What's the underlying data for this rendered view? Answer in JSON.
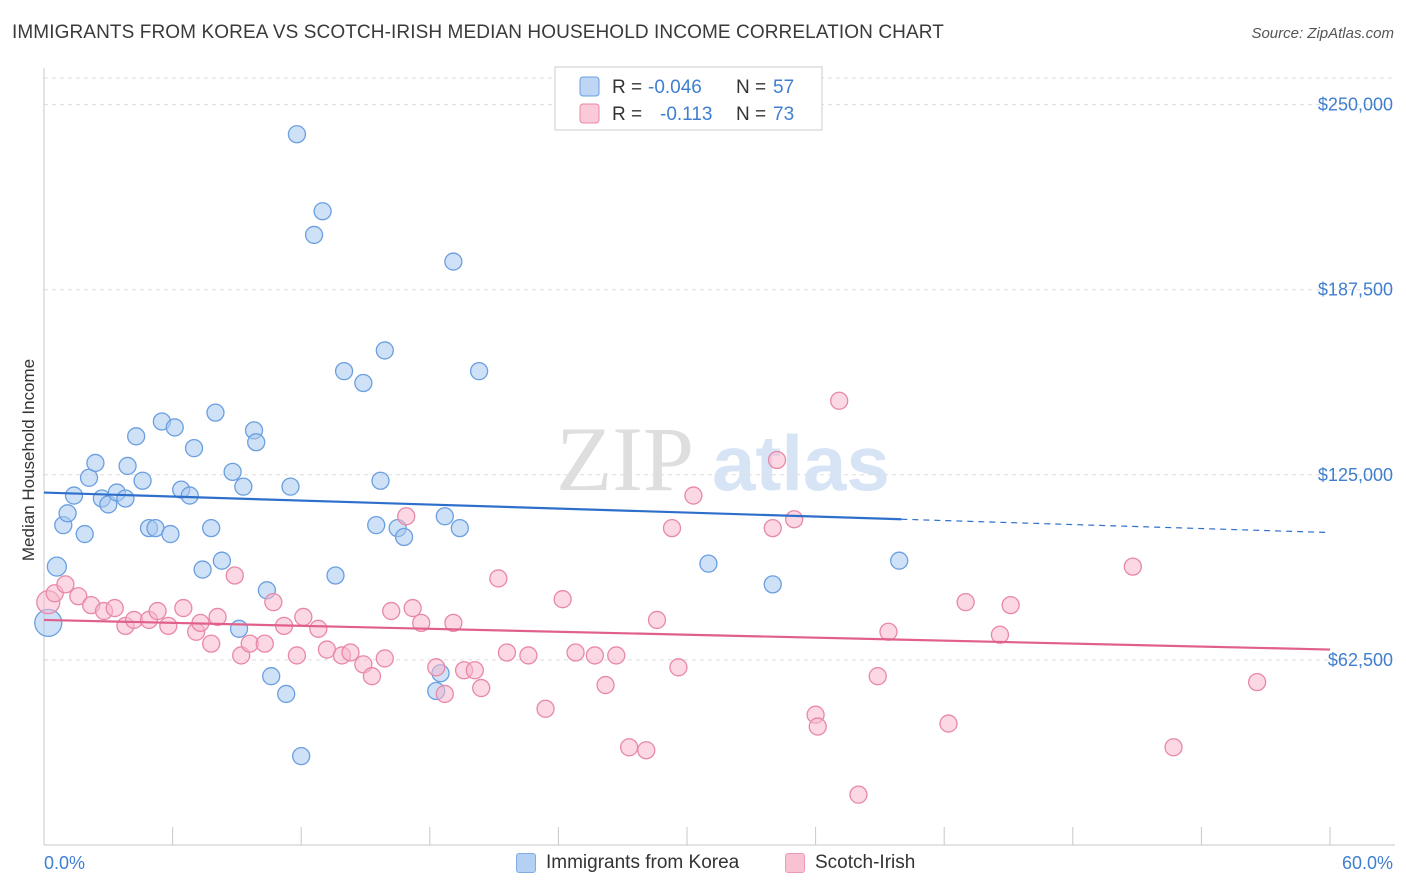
{
  "header": {
    "title": "IMMIGRANTS FROM KOREA VS SCOTCH-IRISH MEDIAN HOUSEHOLD INCOME CORRELATION CHART",
    "source": "Source: ZipAtlas.com"
  },
  "watermark": {
    "zip": "ZIP",
    "atlas": "atlas"
  },
  "chart_data": {
    "type": "scatter",
    "ylabel": "Median Household Income",
    "xlim": [
      0,
      60
    ],
    "ylim": [
      0,
      260000
    ],
    "x_ticks": [
      "0.0%",
      "60.0%"
    ],
    "y_ticks": [
      {
        "value": 62500,
        "label": "$62,500"
      },
      {
        "value": 125000,
        "label": "$125,000"
      },
      {
        "value": 187500,
        "label": "$187,500"
      },
      {
        "value": 250000,
        "label": "$250,000"
      }
    ],
    "grid": "horizontal dashed",
    "legend_top": [
      {
        "r_label": "R =",
        "r_value": "-0.046",
        "n_label": "N =",
        "n_value": "57",
        "color": "#a8c8f0",
        "stroke": "#6a9fe0"
      },
      {
        "r_label": "R =",
        "r_value": "-0.113",
        "n_label": "N =",
        "n_value": "73",
        "color": "#f8b8cc",
        "stroke": "#e888a8"
      }
    ],
    "series": [
      {
        "name": "Immigrants from Korea",
        "color": "#a8c8f0",
        "stroke": "#6a9fe0",
        "line_color": "#2f6fcc",
        "trend": {
          "x0": 0,
          "y0": 119000,
          "x1": 40,
          "y1": 110000,
          "dash_to_x": 60,
          "dash_to_y": 105500
        },
        "points": [
          [
            0.2,
            75000,
            30
          ],
          [
            0.6,
            94000,
            22
          ],
          [
            0.9,
            108000,
            20
          ],
          [
            1.1,
            112000,
            20
          ],
          [
            1.4,
            118000,
            20
          ],
          [
            1.9,
            105000,
            20
          ],
          [
            2.1,
            124000,
            20
          ],
          [
            2.4,
            129000,
            20
          ],
          [
            2.7,
            117000,
            20
          ],
          [
            3.0,
            115000,
            20
          ],
          [
            3.4,
            119000,
            20
          ],
          [
            3.9,
            128000,
            20
          ],
          [
            3.8,
            117000,
            20
          ],
          [
            4.3,
            138000,
            20
          ],
          [
            4.6,
            123000,
            20
          ],
          [
            4.9,
            107000,
            20
          ],
          [
            5.2,
            107000,
            20
          ],
          [
            5.5,
            143000,
            20
          ],
          [
            5.9,
            105000,
            20
          ],
          [
            6.1,
            141000,
            20
          ],
          [
            6.4,
            120000,
            20
          ],
          [
            6.8,
            118000,
            20
          ],
          [
            7.0,
            134000,
            20
          ],
          [
            7.4,
            93000,
            20
          ],
          [
            7.8,
            107000,
            20
          ],
          [
            8.0,
            146000,
            20
          ],
          [
            8.3,
            96000,
            20
          ],
          [
            8.8,
            126000,
            20
          ],
          [
            9.1,
            73000,
            20
          ],
          [
            9.3,
            121000,
            20
          ],
          [
            9.8,
            140000,
            20
          ],
          [
            9.9,
            136000,
            20
          ],
          [
            10.4,
            86000,
            20
          ],
          [
            10.6,
            57000,
            20
          ],
          [
            11.3,
            51000,
            20
          ],
          [
            11.5,
            121000,
            20
          ],
          [
            11.8,
            240000,
            20
          ],
          [
            12.0,
            30000,
            20
          ],
          [
            12.6,
            206000,
            20
          ],
          [
            13.0,
            214000,
            20
          ],
          [
            13.6,
            91000,
            20
          ],
          [
            14.0,
            160000,
            20
          ],
          [
            14.9,
            156000,
            20
          ],
          [
            15.5,
            108000,
            20
          ],
          [
            15.7,
            123000,
            20
          ],
          [
            15.9,
            167000,
            20
          ],
          [
            16.5,
            107000,
            20
          ],
          [
            16.8,
            104000,
            20
          ],
          [
            18.3,
            52000,
            20
          ],
          [
            18.5,
            58000,
            20
          ],
          [
            18.7,
            111000,
            20
          ],
          [
            19.1,
            197000,
            20
          ],
          [
            19.4,
            107000,
            20
          ],
          [
            20.3,
            160000,
            20
          ],
          [
            31.0,
            95000,
            20
          ],
          [
            34.0,
            88000,
            20
          ],
          [
            39.9,
            96000,
            20
          ]
        ]
      },
      {
        "name": "Scotch-Irish",
        "color": "#f8b8cc",
        "stroke": "#e888a8",
        "line_color": "#e0608a",
        "trend": {
          "x0": 0,
          "y0": 76000,
          "x1": 60,
          "y1": 66000
        },
        "points": [
          [
            0.2,
            82000,
            26
          ],
          [
            0.5,
            85000,
            20
          ],
          [
            1.0,
            88000,
            20
          ],
          [
            1.6,
            84000,
            20
          ],
          [
            2.2,
            81000,
            20
          ],
          [
            2.8,
            79000,
            20
          ],
          [
            3.3,
            80000,
            20
          ],
          [
            3.8,
            74000,
            20
          ],
          [
            4.2,
            76000,
            20
          ],
          [
            4.9,
            76000,
            20
          ],
          [
            5.3,
            79000,
            20
          ],
          [
            5.8,
            74000,
            20
          ],
          [
            6.5,
            80000,
            20
          ],
          [
            7.1,
            72000,
            20
          ],
          [
            7.3,
            75000,
            20
          ],
          [
            7.8,
            68000,
            20
          ],
          [
            8.1,
            77000,
            20
          ],
          [
            8.9,
            91000,
            20
          ],
          [
            9.2,
            64000,
            20
          ],
          [
            9.6,
            68000,
            20
          ],
          [
            10.3,
            68000,
            20
          ],
          [
            10.7,
            82000,
            20
          ],
          [
            11.2,
            74000,
            20
          ],
          [
            11.8,
            64000,
            20
          ],
          [
            12.1,
            77000,
            20
          ],
          [
            12.8,
            73000,
            20
          ],
          [
            13.2,
            66000,
            20
          ],
          [
            13.9,
            64000,
            20
          ],
          [
            14.3,
            65000,
            20
          ],
          [
            14.9,
            61000,
            20
          ],
          [
            15.3,
            57000,
            20
          ],
          [
            15.9,
            63000,
            20
          ],
          [
            16.2,
            79000,
            20
          ],
          [
            16.9,
            111000,
            20
          ],
          [
            17.2,
            80000,
            20
          ],
          [
            17.6,
            75000,
            20
          ],
          [
            18.3,
            60000,
            20
          ],
          [
            18.7,
            51000,
            20
          ],
          [
            19.1,
            75000,
            20
          ],
          [
            19.6,
            59000,
            20
          ],
          [
            20.1,
            59000,
            20
          ],
          [
            20.4,
            53000,
            20
          ],
          [
            21.2,
            90000,
            20
          ],
          [
            21.6,
            65000,
            20
          ],
          [
            22.6,
            64000,
            20
          ],
          [
            23.4,
            46000,
            20
          ],
          [
            24.2,
            83000,
            20
          ],
          [
            24.8,
            65000,
            20
          ],
          [
            25.7,
            64000,
            20
          ],
          [
            26.2,
            54000,
            20
          ],
          [
            26.7,
            64000,
            20
          ],
          [
            27.3,
            33000,
            20
          ],
          [
            28.1,
            32000,
            20
          ],
          [
            28.6,
            76000,
            20
          ],
          [
            29.3,
            107000,
            20
          ],
          [
            29.6,
            60000,
            20
          ],
          [
            30.3,
            118000,
            20
          ],
          [
            34.0,
            107000,
            20
          ],
          [
            34.2,
            130000,
            20
          ],
          [
            35.0,
            110000,
            20
          ],
          [
            36.0,
            44000,
            20
          ],
          [
            36.1,
            40000,
            20
          ],
          [
            37.1,
            150000,
            20
          ],
          [
            38.0,
            17000,
            20
          ],
          [
            38.9,
            57000,
            20
          ],
          [
            39.4,
            72000,
            20
          ],
          [
            42.2,
            41000,
            20
          ],
          [
            43.0,
            82000,
            20
          ],
          [
            44.6,
            71000,
            20
          ],
          [
            45.1,
            81000,
            20
          ],
          [
            50.8,
            94000,
            20
          ],
          [
            52.7,
            33000,
            20
          ],
          [
            56.6,
            55000,
            20
          ]
        ]
      }
    ]
  }
}
